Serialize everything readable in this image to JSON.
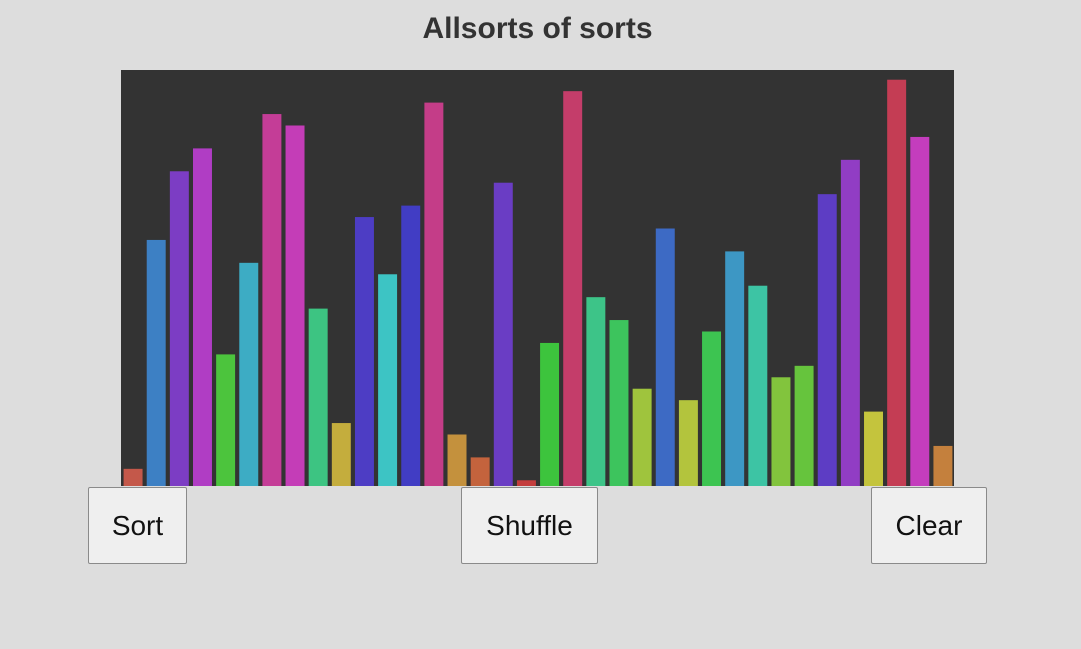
{
  "page": {
    "title": "Allsorts of sorts"
  },
  "controls": {
    "sort_label": "Sort",
    "shuffle_label": "Shuffle",
    "clear_label": "Clear"
  },
  "chart_data": {
    "type": "bar",
    "background": "#333333",
    "ylim": [
      0,
      36
    ],
    "values": [
      1.5,
      21.5,
      27.5,
      29.5,
      11.5,
      19.5,
      32.5,
      31.5,
      15.5,
      5.5,
      23.5,
      18.5,
      24.5,
      33.5,
      4.5,
      2.5,
      26.5,
      0.5,
      12.5,
      34.5,
      16.5,
      14.5,
      8.5,
      22.5,
      7.5,
      13.5,
      20.5,
      17.5,
      9.5,
      10.5,
      25.5,
      28.5,
      6.5,
      35.5,
      30.5,
      3.5
    ],
    "colors": [
      "#c4584a",
      "#3d80c4",
      "#7c3dc4",
      "#b03dc4",
      "#4cc43d",
      "#3dacc4",
      "#c43d97",
      "#c43db7",
      "#3dc482",
      "#c4ad3d",
      "#4d3dc4",
      "#3dc4c4",
      "#413dc4",
      "#c43d88",
      "#c4913d",
      "#c4633d",
      "#6a3dc4",
      "#c43d3d",
      "#3dc43d",
      "#c43d6a",
      "#3dc488",
      "#3dc45d",
      "#9fc43d",
      "#3d6ac4",
      "#b3c43d",
      "#3dc451",
      "#3d97c4",
      "#3dc4a4",
      "#82c43d",
      "#66c43d",
      "#5d3dc4",
      "#913dc4",
      "#c4c43d",
      "#c43d54",
      "#c43dbd",
      "#c4803d"
    ]
  }
}
